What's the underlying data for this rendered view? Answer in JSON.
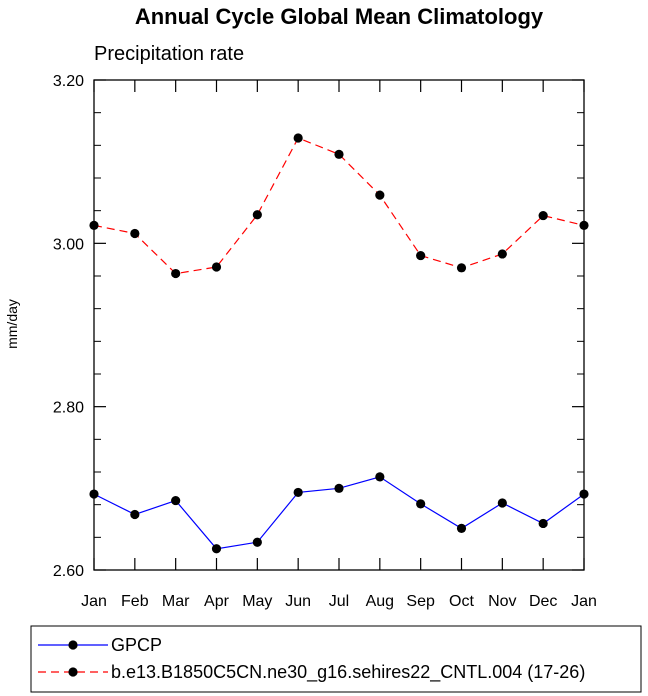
{
  "chart_data": {
    "type": "line",
    "title": "Annual Cycle Global Mean Climatology",
    "subtitle": "Precipitation rate",
    "xlabel": "",
    "ylabel": "mm/day",
    "categories": [
      "Jan",
      "Feb",
      "Mar",
      "Apr",
      "May",
      "Jun",
      "Jul",
      "Aug",
      "Sep",
      "Oct",
      "Nov",
      "Dec",
      "Jan"
    ],
    "ylim": [
      2.6,
      3.2
    ],
    "yticks": [
      "2.60",
      "2.80",
      "3.00",
      "3.20"
    ],
    "series": [
      {
        "name": "GPCP",
        "color": "#0000ff",
        "dash": "solid",
        "values": [
          2.693,
          2.668,
          2.685,
          2.626,
          2.634,
          2.695,
          2.7,
          2.714,
          2.681,
          2.651,
          2.682,
          2.657,
          2.693
        ]
      },
      {
        "name": "b.e13.B1850C5CN.ne30_g16.sehires22_CNTL.004 (17-26)",
        "color": "#ff0000",
        "dash": "dashed",
        "values": [
          3.022,
          3.012,
          2.963,
          2.971,
          3.035,
          3.129,
          3.109,
          3.059,
          2.985,
          2.97,
          2.987,
          3.034,
          3.022
        ]
      }
    ]
  }
}
